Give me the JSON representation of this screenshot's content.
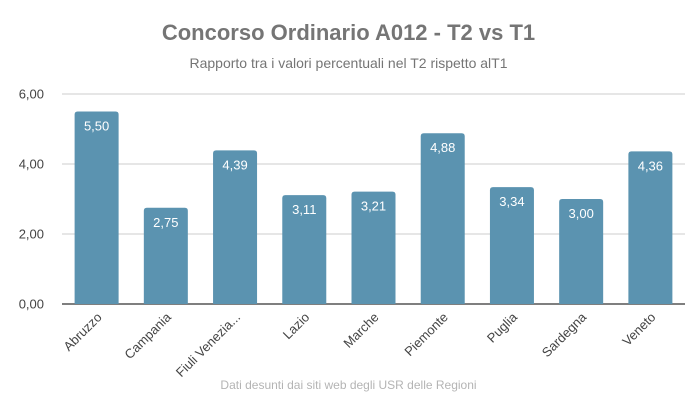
{
  "chart_data": {
    "type": "bar",
    "title": "Concorso Ordinario A012 - T2 vs T1",
    "subtitle": "Rapporto tra i valori percentuali nel T2 rispetto  alT1",
    "footnote": "Dati desunti dai siti web degli USR delle Regioni",
    "categories": [
      "Abruzzo",
      "Campania",
      "Fiuli Venezia...",
      "Lazio",
      "Marche",
      "Piemonte",
      "Puglia",
      "Sardegna",
      "Veneto"
    ],
    "values": [
      5.5,
      2.75,
      4.39,
      3.11,
      3.21,
      4.88,
      3.34,
      3.0,
      4.36
    ],
    "value_labels": [
      "5,50",
      "2,75",
      "4,39",
      "3,11",
      "3,21",
      "4,88",
      "3,34",
      "3,00",
      "4,36"
    ],
    "yticks": [
      0,
      2,
      4,
      6
    ],
    "ytick_labels": [
      "0,00",
      "2,00",
      "4,00",
      "6,00"
    ],
    "ylim": [
      0,
      6
    ],
    "xlabel": "",
    "ylabel": "",
    "grid": true,
    "legend": "none",
    "bar_color": "#5b93b0",
    "label_color": "#ffffff",
    "grid_color": "#cccccc",
    "text_color": "#444444"
  }
}
